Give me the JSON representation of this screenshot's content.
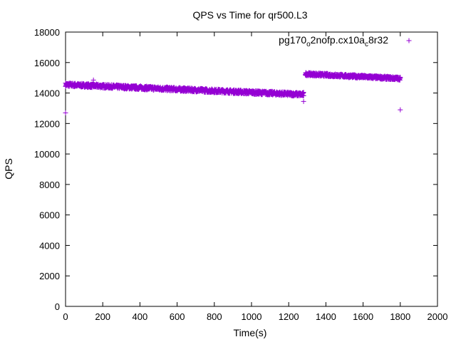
{
  "chart_data": {
    "type": "scatter",
    "title": "QPS vs Time for qr500.L3",
    "xlabel": "Time(s)",
    "ylabel": "QPS",
    "xlim": [
      0,
      2000
    ],
    "ylim": [
      0,
      18000
    ],
    "xticks": [
      "0",
      "200",
      "400",
      "600",
      "800",
      "1000",
      "1200",
      "1400",
      "1600",
      "1800",
      "2000"
    ],
    "yticks": [
      "0",
      "2000",
      "4000",
      "6000",
      "8000",
      "10000",
      "12000",
      "14000",
      "16000",
      "18000"
    ],
    "grid": false,
    "legend_position": "top-right",
    "marker": "+",
    "series": [
      {
        "name_parts": [
          "pg170",
          "o",
          "2nofp.cx10a",
          "c",
          "8r32"
        ],
        "color": "#9400d3",
        "segments": [
          {
            "x_start": 0,
            "x_end": 1280,
            "y_start": 14550,
            "y_end": 13900,
            "jitter": 120
          },
          {
            "x_start": 1290,
            "x_end": 1800,
            "y_start": 15250,
            "y_end": 14950,
            "jitter": 100
          }
        ],
        "outliers": [
          {
            "x": 0,
            "y": 12700
          },
          {
            "x": 1280,
            "y": 13450
          },
          {
            "x": 1280,
            "y": 14050
          },
          {
            "x": 1800,
            "y": 12900
          },
          {
            "x": 150,
            "y": 14850
          }
        ]
      }
    ]
  }
}
